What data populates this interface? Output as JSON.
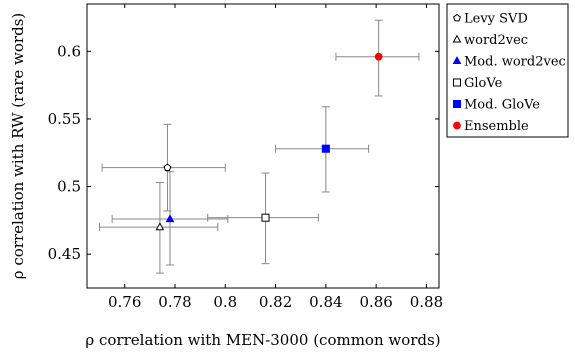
{
  "chart_data": {
    "type": "scatter",
    "xlabel": "ρ correlation with MEN-3000 (common words)",
    "ylabel": "ρ correlation with RW (rare words)",
    "xlim": [
      0.745,
      0.885
    ],
    "ylim": [
      0.425,
      0.635
    ],
    "xticks": [
      0.76,
      0.78,
      0.8,
      0.82,
      0.84,
      0.86,
      0.88
    ],
    "xtick_labels": [
      "0.76",
      "0.78",
      "0.8",
      "0.82",
      "0.84",
      "0.86",
      "0.88"
    ],
    "yticks": [
      0.45,
      0.5,
      0.55,
      0.6
    ],
    "ytick_labels": [
      "0.45",
      "0.5",
      "0.55",
      "0.6"
    ],
    "grid": false,
    "legend_position": "outside-right-top",
    "series": [
      {
        "name": "Levy SVD",
        "marker": "pentagon-open",
        "color": "#000000",
        "x": 0.777,
        "y": 0.514,
        "x_err": [
          0.751,
          0.8
        ],
        "y_err": [
          0.482,
          0.546
        ]
      },
      {
        "name": "word2vec",
        "marker": "triangle-open",
        "color": "#000000",
        "x": 0.774,
        "y": 0.47,
        "x_err": [
          0.75,
          0.797
        ],
        "y_err": [
          0.436,
          0.503
        ]
      },
      {
        "name": "Mod. word2vec",
        "marker": "triangle-filled",
        "color": "#0000ff",
        "x": 0.778,
        "y": 0.476,
        "x_err": [
          0.755,
          0.801
        ],
        "y_err": [
          0.442,
          0.511
        ]
      },
      {
        "name": "GloVe",
        "marker": "square-open",
        "color": "#000000",
        "x": 0.816,
        "y": 0.477,
        "x_err": [
          0.793,
          0.837
        ],
        "y_err": [
          0.443,
          0.51
        ]
      },
      {
        "name": "Mod. GloVe",
        "marker": "square-filled",
        "color": "#0000ff",
        "x": 0.84,
        "y": 0.528,
        "x_err": [
          0.82,
          0.857
        ],
        "y_err": [
          0.496,
          0.559
        ]
      },
      {
        "name": "Ensemble",
        "marker": "circle-filled",
        "color": "#ff0000",
        "x": 0.861,
        "y": 0.596,
        "x_err": [
          0.844,
          0.877
        ],
        "y_err": [
          0.567,
          0.623
        ]
      }
    ],
    "errorbar_color": "#888888"
  }
}
